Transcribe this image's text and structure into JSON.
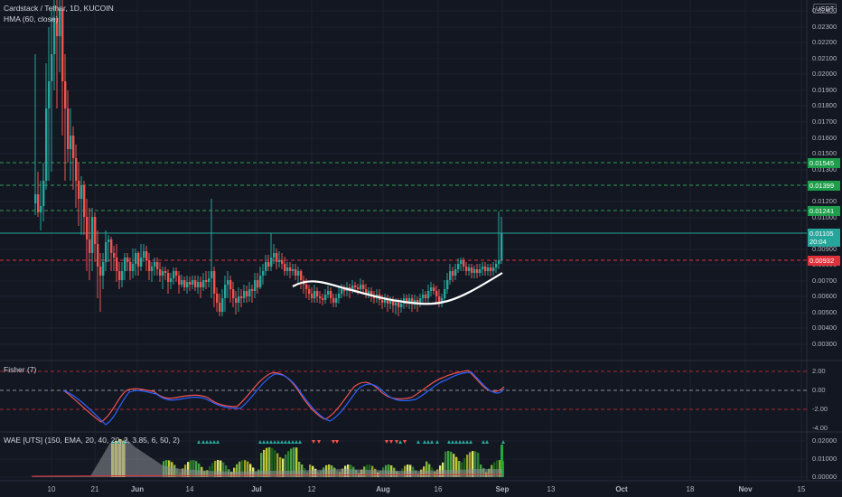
{
  "header": {
    "symbol": "Cardstack / Tether, 1D, KUCOIN",
    "indicator": "HMA (60, close)",
    "currency_badge": "USDT"
  },
  "fisher_label": "Fisher (7)",
  "wae_label": "WAE [UTS] (150, EMA, 20, 40, 20, 2, 3.85, 6, 50, 2)",
  "price_axis": [
    "0.02400",
    "0.02300",
    "0.02200",
    "0.02100",
    "0.02000",
    "0.01900",
    "0.01800",
    "0.01700",
    "0.01600",
    "0.01500",
    "0.01300",
    "0.01200",
    "0.01000",
    "0.00900",
    "0.00800",
    "0.00700",
    "0.00600",
    "0.00500",
    "0.00400",
    "0.00300"
  ],
  "price_badges": [
    {
      "value": "0.01545",
      "color": "#1e9e4a"
    },
    {
      "value": "0.01399",
      "color": "#1e9e4a"
    },
    {
      "value": "0.01241",
      "color": "#1e9e4a"
    },
    {
      "value": "0.01105",
      "sub": "20:04",
      "color": "#26a69a"
    },
    {
      "value": "0.00932",
      "color": "#e0303a"
    }
  ],
  "fisher_axis": [
    "2.00",
    "0.00",
    "-2.00",
    "-4.00"
  ],
  "wae_axis": [
    "0.02000",
    "0.01000",
    "0.00000"
  ],
  "x_axis": [
    "10",
    "21",
    "Jun",
    "14",
    "Jul",
    "12",
    "Aug",
    "16",
    "Sep",
    "13",
    "Oct",
    "18",
    "Nov",
    "15"
  ],
  "colors": {
    "bg": "#131722",
    "up": "#26a69a",
    "down": "#ef5350",
    "hma": "#ffffff",
    "grid": "#1e222d"
  }
}
